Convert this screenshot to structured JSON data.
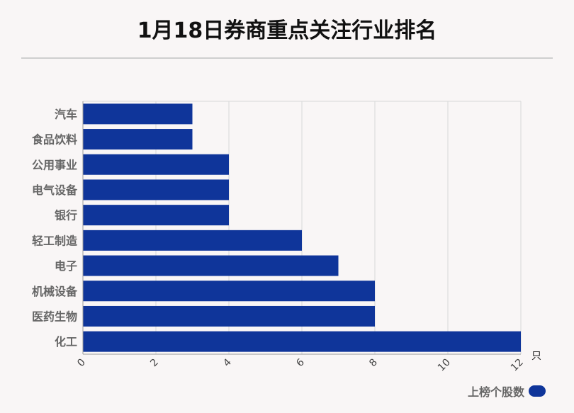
{
  "chart_data": {
    "type": "bar",
    "orientation": "horizontal",
    "title": "1月18日券商重点关注行业排名",
    "categories": [
      "汽车",
      "食品饮料",
      "公用事业",
      "电气设备",
      "银行",
      "轻工制造",
      "电子",
      "机械设备",
      "医药生物",
      "化工"
    ],
    "series": [
      {
        "name": "上榜个股数",
        "values": [
          3,
          3,
          4,
          4,
          4,
          6,
          7,
          8,
          8,
          12
        ]
      }
    ],
    "xlim": [
      0,
      12
    ],
    "x_ticks": [
      "0",
      "2",
      "4",
      "6",
      "8",
      "10",
      "12"
    ],
    "x_unit": "只",
    "grid": true,
    "legend_position": "bottom-right",
    "bar_color": "#0f359a"
  }
}
